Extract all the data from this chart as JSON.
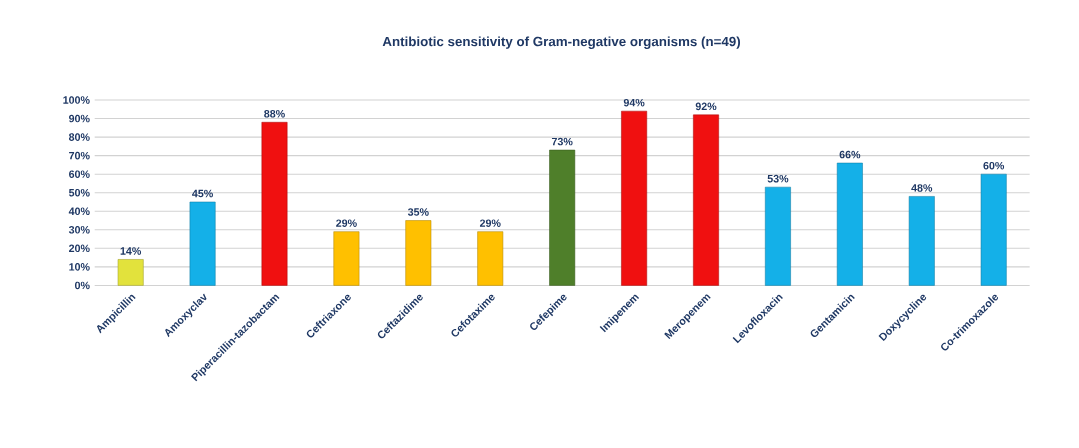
{
  "chart_data": {
    "type": "bar",
    "title": "Antibiotic sensitivity of Gram-negative organisms (n=49)",
    "categories": [
      "Ampicillin",
      "Amoxyclav",
      "Piperacillin-tazobactam",
      "Ceftriaxone",
      "Ceftazidime",
      "Cefotaxime",
      "Cefepime",
      "Imipenem",
      "Meropenem",
      "Levofloxacin",
      "Gentamicin",
      "Doxycycline",
      "Co-trimoxazole"
    ],
    "values": [
      14,
      45,
      88,
      29,
      35,
      29,
      73,
      94,
      92,
      53,
      66,
      48,
      60
    ],
    "value_labels": [
      "14%",
      "45%",
      "88%",
      "29%",
      "35%",
      "29%",
      "73%",
      "94%",
      "92%",
      "53%",
      "66%",
      "48%",
      "60%"
    ],
    "colors": [
      "#e2e23c",
      "#14b0e8",
      "#f01010",
      "#ffc000",
      "#ffc000",
      "#ffc000",
      "#4f7f2a",
      "#f01010",
      "#f01010",
      "#14b0e8",
      "#14b0e8",
      "#14b0e8",
      "#14b0e8"
    ],
    "ylim": [
      0,
      100
    ],
    "yticks": [
      {
        "value": 0,
        "label": "0%"
      },
      {
        "value": 10,
        "label": "10%"
      },
      {
        "value": 20,
        "label": "20%"
      },
      {
        "value": 30,
        "label": "30%"
      },
      {
        "value": 40,
        "label": "40%"
      },
      {
        "value": 50,
        "label": "50%"
      },
      {
        "value": 60,
        "label": "60%"
      },
      {
        "value": 70,
        "label": "70%"
      },
      {
        "value": 80,
        "label": "80%"
      },
      {
        "value": 90,
        "label": "90%"
      },
      {
        "value": 100,
        "label": "100%"
      }
    ],
    "grid": "y"
  }
}
